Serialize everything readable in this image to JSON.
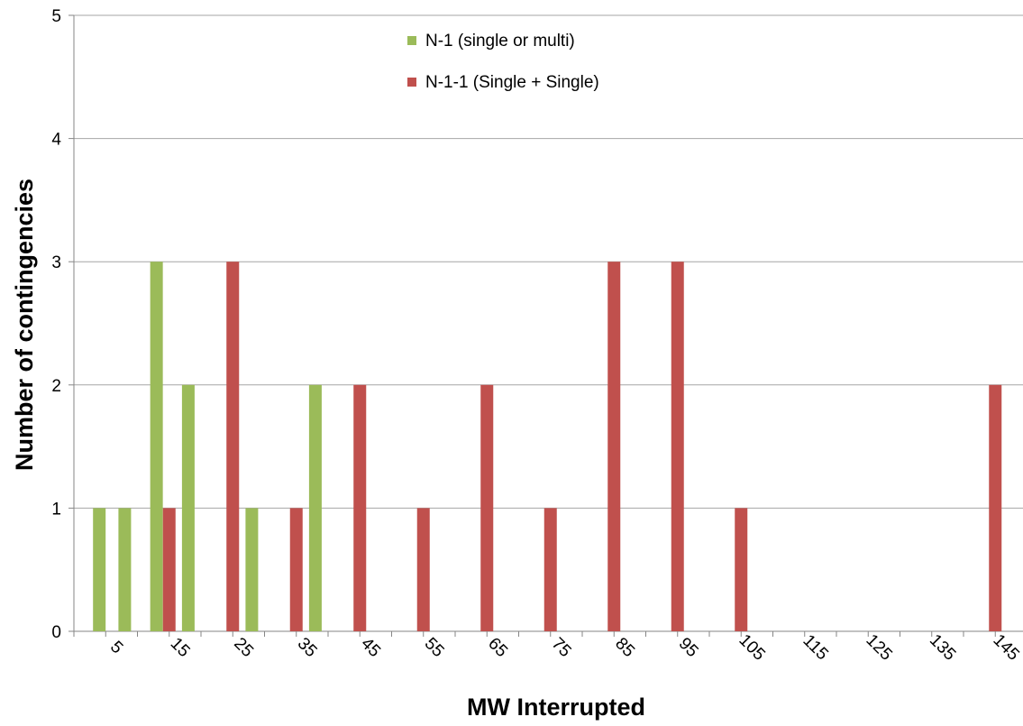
{
  "chart_data": {
    "type": "bar",
    "title": "",
    "xlabel": "MW Interrupted",
    "ylabel": "Number of contingencies",
    "categories": [
      "5",
      "15",
      "25",
      "35",
      "45",
      "55",
      "65",
      "75",
      "85",
      "95",
      "105",
      "115",
      "125",
      "135",
      "145"
    ],
    "x_mid_ticks": [
      10,
      20,
      30
    ],
    "ylim": [
      0,
      5
    ],
    "yticks": [
      0,
      1,
      2,
      3,
      4,
      5
    ],
    "grid": true,
    "legend_position": "top-center",
    "series": [
      {
        "name": "N-1 (single or multi)",
        "color": "#9bbb59",
        "points": [
          {
            "x": 4,
            "y": 1
          },
          {
            "x": 8,
            "y": 1
          },
          {
            "x": 13,
            "y": 3
          },
          {
            "x": 18,
            "y": 2
          },
          {
            "x": 28,
            "y": 1
          },
          {
            "x": 38,
            "y": 2
          }
        ]
      },
      {
        "name": "N-1-1 (Single + Single)",
        "color": "#c0504d",
        "points": [
          {
            "x": 15,
            "y": 1
          },
          {
            "x": 25,
            "y": 3
          },
          {
            "x": 35,
            "y": 1
          },
          {
            "x": 45,
            "y": 2
          },
          {
            "x": 55,
            "y": 1
          },
          {
            "x": 65,
            "y": 2
          },
          {
            "x": 75,
            "y": 1
          },
          {
            "x": 85,
            "y": 3
          },
          {
            "x": 95,
            "y": 3
          },
          {
            "x": 105,
            "y": 1
          },
          {
            "x": 145,
            "y": 2
          }
        ]
      }
    ]
  }
}
